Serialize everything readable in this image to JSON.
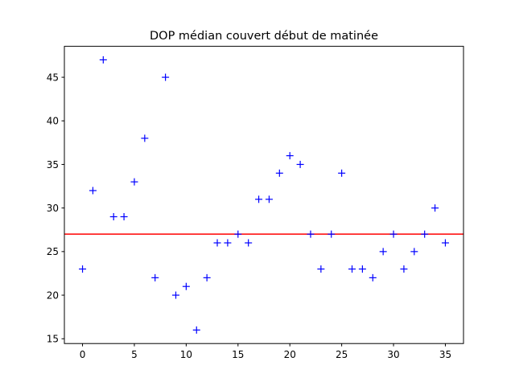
{
  "chart_data": {
    "type": "scatter",
    "title": "DOP médian couvert début de matinée",
    "xlabel": "",
    "ylabel": "",
    "xlim": [
      -1.75,
      36.75
    ],
    "ylim": [
      14.45,
      48.55
    ],
    "x_ticks": [
      0,
      5,
      10,
      15,
      20,
      25,
      30,
      35
    ],
    "y_ticks": [
      15,
      20,
      25,
      30,
      35,
      40,
      45
    ],
    "x_tick_labels": [
      "0",
      "5",
      "10",
      "15",
      "20",
      "25",
      "30",
      "35"
    ],
    "y_tick_labels": [
      "15",
      "20",
      "25",
      "30",
      "35",
      "40",
      "45"
    ],
    "grid": false,
    "legend": "none",
    "series": [
      {
        "marker": "plus",
        "color": "#0000ff",
        "x": [
          0,
          1,
          2,
          3,
          4,
          5,
          6,
          7,
          8,
          9,
          10,
          11,
          12,
          13,
          14,
          15,
          16,
          17,
          18,
          19,
          20,
          21,
          22,
          23,
          24,
          25,
          26,
          27,
          28,
          29,
          30,
          31,
          32,
          33,
          34,
          35
        ],
        "y": [
          23,
          32,
          47,
          29,
          29,
          33,
          38,
          22,
          45,
          20,
          21,
          16,
          22,
          26,
          26,
          27,
          26,
          31,
          31,
          34,
          36,
          35,
          27,
          23,
          27,
          34,
          23,
          23,
          22,
          25,
          27,
          23,
          25,
          27,
          30,
          26
        ]
      }
    ],
    "hlines": [
      {
        "y": 27,
        "color": "#ff0000"
      }
    ]
  }
}
